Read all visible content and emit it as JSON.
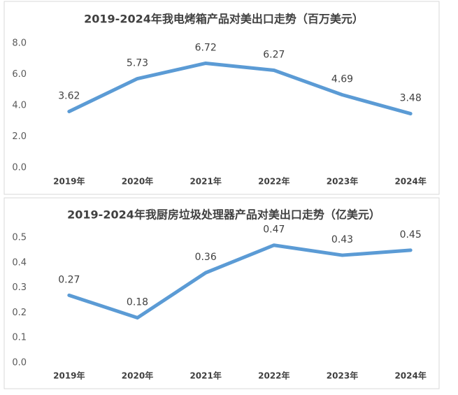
{
  "chart_data": [
    {
      "type": "line",
      "title": "2019-2024年我电烤箱产品对美出口走势（百万美元）",
      "categories": [
        "2019年",
        "2020年",
        "2021年",
        "2022年",
        "2023年",
        "2024年"
      ],
      "series": [
        {
          "name": "电烤箱",
          "color": "#5b9bd5",
          "values": [
            3.62,
            5.73,
            6.72,
            6.27,
            4.69,
            3.48
          ]
        }
      ],
      "ylim": [
        0,
        8
      ],
      "yticks": [
        {
          "value": 0,
          "label": "0.0"
        },
        {
          "value": 2,
          "label": "2.0"
        },
        {
          "value": 4,
          "label": "4.0"
        },
        {
          "value": 6,
          "label": "6.0"
        },
        {
          "value": 8,
          "label": "8.0"
        }
      ],
      "grid": false
    },
    {
      "type": "line",
      "title": "2019-2024年我厨房垃圾处理器产品对美出口走势（亿美元）",
      "categories": [
        "2019年",
        "2020年",
        "2021年",
        "2022年",
        "2023年",
        "2024年"
      ],
      "series": [
        {
          "name": "厨房垃圾处理器",
          "color": "#5b9bd5",
          "values": [
            0.27,
            0.18,
            0.36,
            0.47,
            0.43,
            0.45
          ]
        }
      ],
      "ylim": [
        0,
        0.5
      ],
      "yticks": [
        {
          "value": 0,
          "label": "0.0"
        },
        0.1,
        0.2,
        0.3,
        0.4,
        0.5
      ],
      "grid": false
    }
  ]
}
